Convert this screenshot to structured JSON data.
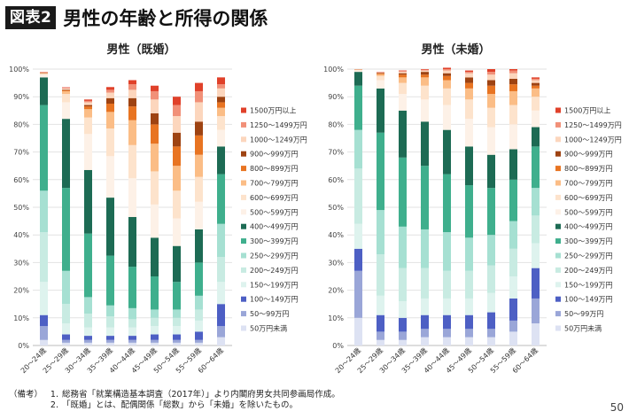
{
  "header": {
    "badge": "図表2",
    "title": "男性の年齢と所得の関係"
  },
  "colors": {
    "50万円未満": "#dde2f3",
    "50～99万円": "#9aa6d8",
    "100～149万円": "#4d5fc4",
    "150～199万円": "#def3ee",
    "200～249万円": "#c8ebe2",
    "250～299万円": "#a6e0d2",
    "300～399万円": "#3faf8d",
    "400～499万円": "#1d6b54",
    "500～599万円": "#fdf1e7",
    "600～699万円": "#fde3cc",
    "700～799万円": "#fbbd86",
    "800～899万円": "#e87422",
    "900～999万円": "#9e4312",
    "1000～1249万円": "#fcd6bd",
    "1250～1499万円": "#f19078",
    "1500万円以上": "#e0412a"
  },
  "chart_data": [
    {
      "type": "bar",
      "stacked": true,
      "title": "男性（既婚）",
      "categories": [
        "20～24歳",
        "25～29歳",
        "30～34歳",
        "35～39歳",
        "40～44歳",
        "45～49歳",
        "50～54歳",
        "55～59歳",
        "60～64歳"
      ],
      "y_ticks": [
        "0%",
        "10%",
        "20%",
        "30%",
        "40%",
        "50%",
        "60%",
        "70%",
        "80%",
        "90%",
        "100%"
      ],
      "ylim": [
        0,
        100
      ],
      "legend_position": "right",
      "series": [
        {
          "name": "50万円未満",
          "values": [
            2,
            1,
            1,
            1,
            1,
            1,
            1,
            1,
            3
          ]
        },
        {
          "name": "50～99万円",
          "values": [
            5,
            1,
            1,
            1,
            1,
            1,
            1,
            1,
            4
          ]
        },
        {
          "name": "100～149万円",
          "values": [
            4,
            2,
            1.5,
            1.5,
            1.5,
            2,
            2,
            3,
            8
          ]
        },
        {
          "name": "150～199万円",
          "values": [
            12,
            4,
            3,
            3,
            3,
            3,
            3,
            4,
            8
          ]
        },
        {
          "name": "200～249万円",
          "values": [
            18,
            7,
            5,
            4,
            3,
            3,
            3,
            4,
            9
          ]
        },
        {
          "name": "250～299万円",
          "values": [
            15,
            12,
            6,
            4,
            4,
            3,
            3,
            5,
            12
          ]
        },
        {
          "name": "300～399万円",
          "values": [
            31,
            30,
            23,
            18,
            15,
            12,
            10,
            12,
            18
          ]
        },
        {
          "name": "400～499万円",
          "values": [
            10,
            25,
            23,
            21,
            18,
            14,
            13,
            12,
            10
          ]
        },
        {
          "name": "500～599万円",
          "values": [
            1,
            6,
            13,
            15,
            14,
            12,
            10,
            10,
            6
          ]
        },
        {
          "name": "600～699万円",
          "values": [
            0.3,
            3,
            6,
            10,
            12,
            12,
            10,
            9,
            5
          ]
        },
        {
          "name": "700～799万円",
          "values": [
            0.2,
            1,
            3,
            6,
            9,
            10,
            9,
            8,
            3
          ]
        },
        {
          "name": "800～899万円",
          "values": [
            0.1,
            0.3,
            1,
            3,
            5,
            7,
            7,
            7,
            2
          ]
        },
        {
          "name": "900～999万円",
          "values": [
            0.1,
            0.2,
            0.5,
            2,
            3,
            4,
            5,
            5,
            2
          ]
        },
        {
          "name": "1000～1249万円",
          "values": [
            0.1,
            0.5,
            1,
            2,
            3,
            5,
            6,
            7,
            3
          ]
        },
        {
          "name": "1250～1499万円",
          "values": [
            0.1,
            0.2,
            0.5,
            1,
            2,
            3,
            4,
            4,
            1.5
          ]
        },
        {
          "name": "1500万円以上",
          "values": [
            0.1,
            0.2,
            0.5,
            1,
            1.5,
            2,
            3,
            3,
            2.5
          ]
        }
      ]
    },
    {
      "type": "bar",
      "stacked": true,
      "title": "男性（未婚）",
      "categories": [
        "20～24歳",
        "25～29歳",
        "30～34歳",
        "35～39歳",
        "40～44歳",
        "45～49歳",
        "50～54歳",
        "55～59歳",
        "60～64歳"
      ],
      "y_ticks": [
        "0%",
        "10%",
        "20%",
        "30%",
        "40%",
        "50%",
        "60%",
        "70%",
        "80%",
        "90%",
        "100%"
      ],
      "ylim": [
        0,
        100
      ],
      "legend_position": "right",
      "series": [
        {
          "name": "50万円未満",
          "values": [
            10,
            2,
            2,
            3,
            3,
            3,
            3,
            5,
            8
          ]
        },
        {
          "name": "50～99万円",
          "values": [
            17,
            3,
            3,
            3,
            3,
            3,
            3,
            4,
            9
          ]
        },
        {
          "name": "100～149万円",
          "values": [
            8,
            6,
            5,
            5,
            5,
            5,
            6,
            8,
            11
          ]
        },
        {
          "name": "150～199万円",
          "values": [
            9,
            7,
            6,
            6,
            6,
            6,
            7,
            8,
            9
          ]
        },
        {
          "name": "200～249万円",
          "values": [
            20,
            15,
            12,
            11,
            10,
            10,
            10,
            10,
            10
          ]
        },
        {
          "name": "250～299万円",
          "values": [
            14,
            16,
            15,
            14,
            14,
            12,
            11,
            10,
            10
          ]
        },
        {
          "name": "300～399万円",
          "values": [
            16,
            28,
            25,
            23,
            21,
            19,
            17,
            15,
            15
          ]
        },
        {
          "name": "400～499万円",
          "values": [
            5,
            16,
            17,
            16,
            16,
            14,
            12,
            11,
            7
          ]
        },
        {
          "name": "500～599万円",
          "values": [
            0.5,
            3,
            6,
            8,
            9,
            10,
            10,
            9,
            6
          ]
        },
        {
          "name": "600～699万円",
          "values": [
            0.2,
            1.5,
            4,
            5,
            6,
            7,
            7,
            7,
            5
          ]
        },
        {
          "name": "700～799万円",
          "values": [
            0.1,
            0.6,
            2,
            3,
            3,
            4,
            5,
            5,
            3
          ]
        },
        {
          "name": "800～899万円",
          "values": [
            0.05,
            0.3,
            1,
            1,
            1.5,
            2,
            3,
            2.5,
            1
          ]
        },
        {
          "name": "900～999万円",
          "values": [
            0.05,
            0.2,
            0.5,
            1,
            1,
            2,
            2,
            2,
            1
          ]
        },
        {
          "name": "1000～1249万円",
          "values": [
            0.05,
            0.2,
            0.5,
            0.5,
            1,
            1.5,
            2,
            2,
            1
          ]
        },
        {
          "name": "1250～1499万円",
          "values": [
            0.03,
            0.1,
            0.3,
            0.3,
            0.5,
            0.5,
            1,
            1,
            0.5
          ]
        },
        {
          "name": "1500万円以上",
          "values": [
            0.02,
            0.1,
            0.2,
            0.2,
            0.5,
            0.5,
            1,
            0.5,
            0.5
          ]
        }
      ]
    }
  ],
  "notes": {
    "label": "（備考）",
    "items": [
      {
        "num": "1.",
        "text": "総務省「就業構造基本調査（2017年）」より内閣府男女共同参画局作成。"
      },
      {
        "num": "2.",
        "text": "「既婚」とは、配偶関係「総数」から「未婚」を除いたもの。"
      }
    ]
  },
  "page_number": "50"
}
